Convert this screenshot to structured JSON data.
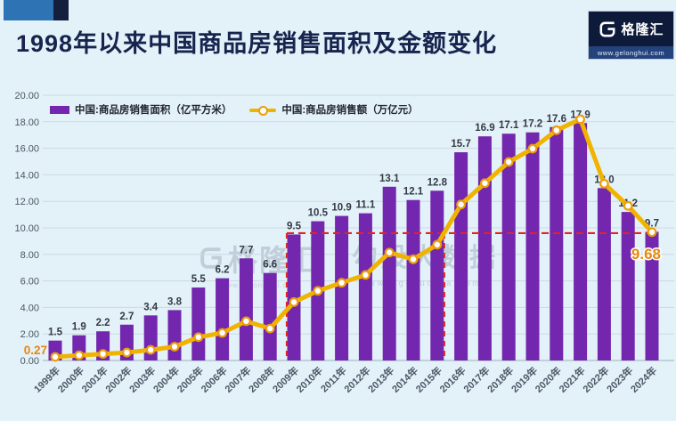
{
  "header": {
    "title": "1998年以来中国商品房销售面积及金额变化",
    "logo": {
      "brand": "格隆汇",
      "url": "www.gelonghui.com"
    }
  },
  "legend": {
    "items": [
      {
        "label": "中国:商品房销售面积（亿平方米）",
        "swatch": "purple-bar"
      },
      {
        "label": "中国:商品房销售额（万亿元）",
        "swatch": "yellow-line-marker"
      }
    ]
  },
  "watermark": {
    "left_brand": "格隆汇",
    "left_url": "www.gelonghui.com",
    "right_brand": "勾股大数据",
    "right_url": "www.gogudata.com"
  },
  "chart_data": {
    "type": "bar",
    "title": "1998年以来中国商品房销售面积及金额变化",
    "categories": [
      "1999年",
      "2000年",
      "2001年",
      "2002年",
      "2003年",
      "2004年",
      "2005年",
      "2006年",
      "2007年",
      "2008年",
      "2009年",
      "2010年",
      "2011年",
      "2012年",
      "2013年",
      "2014年",
      "2015年",
      "2016年",
      "2017年",
      "2018年",
      "2019年",
      "2020年",
      "2021年",
      "2022年",
      "2023年",
      "2024年"
    ],
    "series": [
      {
        "name": "中国:商品房销售面积（亿平方米）",
        "chart_type": "bar",
        "color": "#7327ae",
        "values": [
          1.5,
          1.9,
          2.2,
          2.7,
          3.4,
          3.8,
          5.5,
          6.2,
          7.7,
          6.6,
          9.5,
          10.5,
          10.9,
          11.1,
          13.1,
          12.1,
          12.8,
          15.7,
          16.9,
          17.1,
          17.2,
          17.6,
          17.9,
          13.0,
          11.2,
          9.7
        ],
        "labels": [
          "1.5",
          "1.9",
          "2.2",
          "2.7",
          "3.4",
          "3.8",
          "5.5",
          "6.2",
          "7.7",
          "6.6",
          "9.5",
          "10.5",
          "10.9",
          "11.1",
          "13.1",
          "12.1",
          "12.8",
          "15.7",
          "16.9",
          "17.1",
          "17.2",
          "17.6",
          "17.9",
          "13.0",
          "11.2",
          "9.7"
        ]
      },
      {
        "name": "中国:商品房销售额（万亿元）",
        "chart_type": "line",
        "color": "#f0b400",
        "marker": "hollow-circle",
        "values": [
          0.27,
          0.39,
          0.49,
          0.6,
          0.8,
          1.04,
          1.76,
          2.08,
          2.96,
          2.41,
          4.4,
          5.25,
          5.86,
          6.45,
          8.14,
          7.63,
          8.73,
          11.76,
          13.37,
          14.97,
          15.97,
          17.36,
          18.19,
          13.33,
          11.66,
          9.68
        ],
        "labeled_points": [
          {
            "index": 0,
            "label": "0.27",
            "size": 13.5,
            "dx": -9,
            "dy": -3,
            "halo": false
          },
          {
            "index": 25,
            "label": "9.68",
            "size": 17,
            "dx": 10,
            "dy": 30,
            "halo": true
          }
        ]
      }
    ],
    "ylim": [
      0,
      20
    ],
    "y_tick_step": 2,
    "y_tick_decimals": 2,
    "grid": true,
    "legend_position": "top-left",
    "annotation": {
      "color": "#e32222",
      "hline_value": 9.6,
      "hline_from_index": 10,
      "hline_to_index": 25,
      "vline_indices": [
        10,
        16
      ]
    }
  }
}
